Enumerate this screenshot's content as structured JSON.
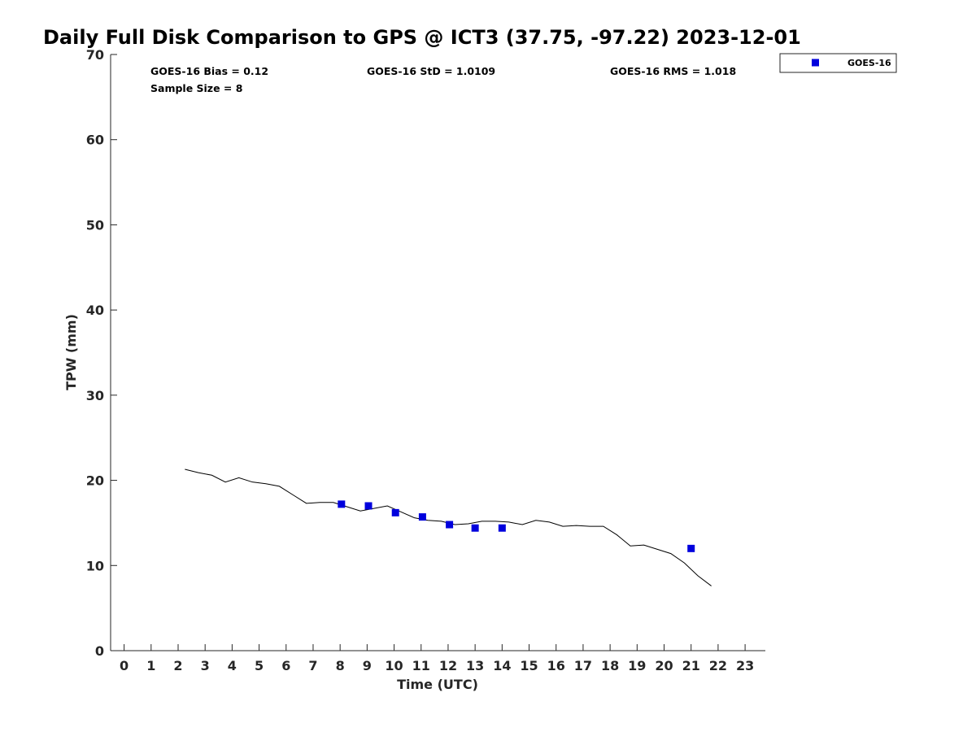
{
  "chart_data": {
    "type": "scatter",
    "title": "Daily Full Disk Comparison to GPS @ ICT3 (37.75, -97.22) 2023-12-01",
    "xlabel": "Time (UTC)",
    "ylabel": "TPW (mm)",
    "xlim": [
      -0.5,
      23.75
    ],
    "ylim": [
      0,
      70
    ],
    "x_ticks": [
      0,
      1,
      2,
      3,
      4,
      5,
      6,
      7,
      8,
      9,
      10,
      11,
      12,
      13,
      14,
      15,
      16,
      17,
      18,
      19,
      20,
      21,
      22,
      23
    ],
    "y_ticks": [
      0,
      10,
      20,
      30,
      40,
      50,
      60,
      70
    ],
    "grid": false,
    "legend_position": "outside-top-right",
    "stats": {
      "bias": "GOES-16 Bias = 0.12",
      "std": "GOES-16 StD = 1.0109",
      "rms": "GOES-16 RMS = 1.018",
      "sample": "Sample Size = 8"
    },
    "series": [
      {
        "name": "GOES-16",
        "type": "scatter",
        "marker": "square",
        "color": "#0000dd",
        "x": [
          8.05,
          9.05,
          10.05,
          11.05,
          12.05,
          13.0,
          14.0,
          21.0
        ],
        "y": [
          17.2,
          17.0,
          16.2,
          15.7,
          14.8,
          14.4,
          14.4,
          12.0
        ]
      },
      {
        "type": "line",
        "color": "#000000",
        "x": [
          2.25,
          2.75,
          3.25,
          3.75,
          4.25,
          4.75,
          5.25,
          5.75,
          6.25,
          6.75,
          7.25,
          7.75,
          8.25,
          8.75,
          9.25,
          9.75,
          10.25,
          10.75,
          11.25,
          11.75,
          12.25,
          12.75,
          13.25,
          13.75,
          14.25,
          14.75,
          15.25,
          15.75,
          16.25,
          16.75,
          17.25,
          17.75,
          18.25,
          18.75,
          19.25,
          19.75,
          20.25,
          20.75,
          21.25,
          21.75
        ],
        "y": [
          21.3,
          20.9,
          20.6,
          19.8,
          20.3,
          19.8,
          19.6,
          19.3,
          18.3,
          17.3,
          17.4,
          17.4,
          16.9,
          16.4,
          16.7,
          17.0,
          16.3,
          15.6,
          15.3,
          15.2,
          14.8,
          14.9,
          15.2,
          15.2,
          15.1,
          14.8,
          15.3,
          15.1,
          14.6,
          14.7,
          14.6,
          14.6,
          13.6,
          12.3,
          12.4,
          11.9,
          11.4,
          10.3,
          8.8,
          7.6
        ]
      }
    ]
  }
}
